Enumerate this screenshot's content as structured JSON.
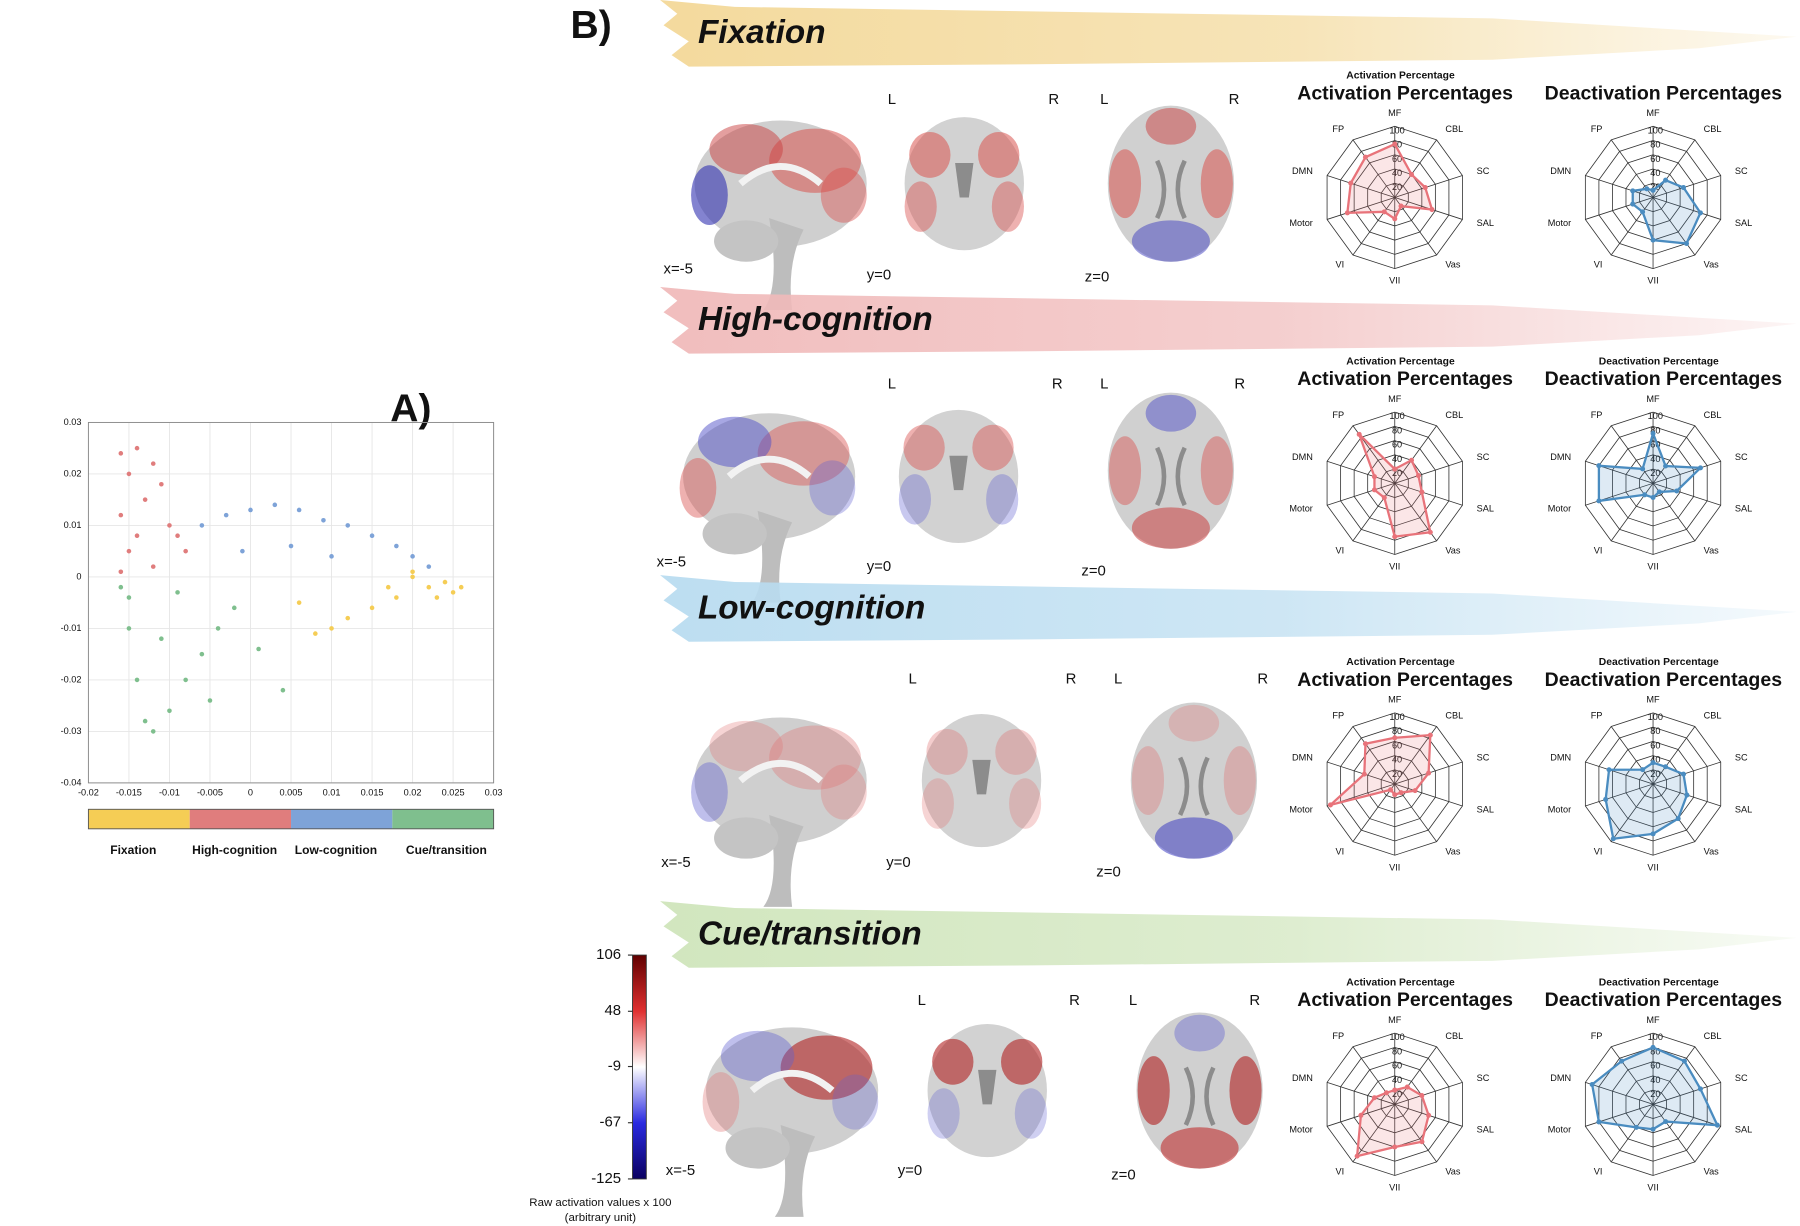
{
  "panels": {
    "a": "A)",
    "b": "B)"
  },
  "states": [
    {
      "title": "Fixation",
      "slices": [
        "x=-5",
        "y=0",
        "z=0"
      ],
      "sides": [
        "L",
        "R",
        "L",
        "R"
      ]
    },
    {
      "title": "High-cognition",
      "slices": [
        "x=-5",
        "y=0",
        "z=0"
      ],
      "sides": [
        "L",
        "R",
        "L",
        "R"
      ]
    },
    {
      "title": "Low-cognition",
      "slices": [
        "x=-5",
        "y=0",
        "z=0"
      ],
      "sides": [
        "L",
        "R",
        "L",
        "R"
      ]
    },
    {
      "title": "Cue/transition",
      "slices": [
        "x=-5",
        "y=0",
        "z=0"
      ],
      "sides": [
        "L",
        "R",
        "L",
        "R"
      ]
    }
  ],
  "chart_data": [
    {
      "type": "scatter",
      "xlim": [
        -0.02,
        0.03
      ],
      "ylim": [
        -0.04,
        0.03
      ],
      "xticks": [
        -0.02,
        -0.015,
        -0.01,
        -0.005,
        0,
        0.005,
        0.01,
        0.015,
        0.02,
        0.025,
        0.03
      ],
      "yticks": [
        -0.04,
        -0.03,
        -0.02,
        -0.01,
        0,
        0.01,
        0.02,
        0.03
      ],
      "grid": true,
      "series": [
        {
          "name": "Fixation",
          "color": "#f5cd55",
          "x": [
            0.02,
            0.022,
            0.024,
            0.026,
            0.025,
            0.018,
            0.015,
            0.012,
            0.01,
            0.008,
            0.006,
            0.02,
            0.017,
            0.023
          ],
          "y": [
            0,
            -0.002,
            -0.001,
            -0.002,
            -0.003,
            -0.004,
            -0.006,
            -0.008,
            -0.01,
            -0.011,
            -0.005,
            0.001,
            -0.002,
            -0.004
          ]
        },
        {
          "name": "High-cognition",
          "color": "#e07d7d",
          "x": [
            -0.016,
            -0.015,
            -0.014,
            -0.012,
            -0.011,
            -0.016,
            -0.013,
            -0.01,
            -0.009,
            -0.008,
            -0.015,
            -0.012,
            -0.016,
            -0.014
          ],
          "y": [
            0.024,
            0.02,
            0.025,
            0.022,
            0.018,
            0.012,
            0.015,
            0.01,
            0.008,
            0.005,
            0.005,
            0.002,
            0.001,
            0.008
          ]
        },
        {
          "name": "Low-cognition",
          "color": "#7ea3d8",
          "x": [
            -0.006,
            -0.003,
            0,
            0.003,
            0.006,
            0.009,
            0.012,
            0.015,
            0.018,
            0.02,
            0.022,
            0.005,
            0.01,
            -0.001
          ],
          "y": [
            0.01,
            0.012,
            0.013,
            0.014,
            0.013,
            0.011,
            0.01,
            0.008,
            0.006,
            0.004,
            0.002,
            0.006,
            0.004,
            0.005
          ]
        },
        {
          "name": "Cue/transition",
          "color": "#7fbf8e",
          "x": [
            -0.016,
            -0.015,
            -0.014,
            -0.013,
            -0.012,
            -0.01,
            -0.008,
            -0.006,
            -0.004,
            -0.002,
            0.001,
            0.004,
            -0.015,
            -0.011,
            -0.009,
            -0.005
          ],
          "y": [
            -0.002,
            -0.01,
            -0.02,
            -0.028,
            -0.03,
            -0.026,
            -0.02,
            -0.015,
            -0.01,
            -0.006,
            -0.014,
            -0.022,
            -0.004,
            -0.012,
            -0.003,
            -0.024
          ]
        }
      ]
    },
    {
      "type": "colorbar",
      "ylim": [
        -125,
        106
      ],
      "yticks": [
        -125,
        -67,
        -9,
        48,
        106
      ],
      "colors": [
        "#0a0060",
        "#2a2ae0",
        "#ffffff",
        "#e03030",
        "#600000"
      ],
      "label": [
        "Raw activation values x 100",
        "(arbitrary unit)"
      ]
    },
    {
      "type": "radar",
      "title": "Activation Percentages",
      "subtitle": "Activation Percentage",
      "categories": [
        "MF",
        "CBL",
        "SC",
        "SAL",
        "Vas",
        "VII",
        "VI",
        "Motor",
        "DMN",
        "FP"
      ],
      "values": [
        75,
        40,
        45,
        55,
        15,
        30,
        25,
        70,
        65,
        70
      ],
      "color": "#e8737a",
      "rlim": [
        0,
        100
      ],
      "rticks": [
        20,
        40,
        60,
        80,
        100
      ]
    },
    {
      "type": "radar",
      "title": "Deactivation Percentages",
      "categories": [
        "MF",
        "CBL",
        "SC",
        "SAL",
        "Vas",
        "VII",
        "VI",
        "Motor",
        "DMN",
        "FP"
      ],
      "values": [
        10,
        30,
        45,
        70,
        80,
        60,
        25,
        30,
        30,
        15
      ],
      "color": "#4a8cc0",
      "rlim": [
        0,
        100
      ],
      "rticks": [
        20,
        40,
        60,
        80,
        100
      ]
    },
    {
      "type": "radar",
      "title": "Activation Percentages",
      "subtitle": "Activation Percentage",
      "categories": [
        "MF",
        "CBL",
        "SC",
        "SAL",
        "Vas",
        "VII",
        "VI",
        "Motor",
        "DMN",
        "FP"
      ],
      "values": [
        20,
        40,
        35,
        40,
        85,
        75,
        25,
        30,
        30,
        85
      ],
      "color": "#e8737a",
      "rlim": [
        0,
        100
      ],
      "rticks": [
        20,
        40,
        60,
        80,
        100
      ]
    },
    {
      "type": "radar",
      "title": "Deactivation Percentages",
      "subtitle": "Deactivation Percentage",
      "categories": [
        "MF",
        "CBL",
        "SC",
        "SAL",
        "Vas",
        "VII",
        "VI",
        "Motor",
        "DMN",
        "FP"
      ],
      "values": [
        70,
        30,
        70,
        35,
        15,
        20,
        20,
        80,
        80,
        25
      ],
      "color": "#4a8cc0",
      "rlim": [
        0,
        100
      ],
      "rticks": [
        20,
        40,
        60,
        80,
        100
      ]
    },
    {
      "type": "radar",
      "title": "Activation Percentages",
      "subtitle": "Activation Percentage",
      "categories": [
        "MF",
        "CBL",
        "SC",
        "SAL",
        "Vas",
        "VII",
        "VI",
        "Motor",
        "DMN",
        "FP"
      ],
      "values": [
        65,
        85,
        50,
        30,
        15,
        15,
        10,
        95,
        45,
        70
      ],
      "color": "#e8737a",
      "rlim": [
        0,
        100
      ],
      "rticks": [
        20,
        40,
        60,
        80,
        100
      ]
    },
    {
      "type": "radar",
      "title": "Deactivation Percentages",
      "subtitle": "Deactivation Percentage",
      "categories": [
        "MF",
        "CBL",
        "SC",
        "SAL",
        "Vas",
        "VII",
        "VI",
        "Motor",
        "DMN",
        "FP"
      ],
      "values": [
        30,
        30,
        45,
        50,
        60,
        70,
        95,
        70,
        65,
        25
      ],
      "color": "#4a8cc0",
      "rlim": [
        0,
        100
      ],
      "rticks": [
        20,
        40,
        60,
        80,
        100
      ]
    },
    {
      "type": "radar",
      "title": "Activation Percentages",
      "subtitle": "Activation Percentage",
      "categories": [
        "MF",
        "CBL",
        "SC",
        "SAL",
        "Vas",
        "VII",
        "VI",
        "Motor",
        "DMN",
        "FP"
      ],
      "values": [
        20,
        30,
        40,
        50,
        65,
        60,
        90,
        50,
        30,
        20
      ],
      "color": "#e8737a",
      "rlim": [
        0,
        100
      ],
      "rticks": [
        20,
        40,
        60,
        80,
        100
      ]
    },
    {
      "type": "radar",
      "title": "Deactivation Percentages",
      "subtitle": "Deactivation Percentage",
      "categories": [
        "MF",
        "CBL",
        "SC",
        "SAL",
        "Vas",
        "VII",
        "VI",
        "Motor",
        "DMN",
        "FP"
      ],
      "values": [
        80,
        75,
        70,
        95,
        30,
        35,
        40,
        80,
        90,
        75
      ],
      "color": "#4a8cc0",
      "rlim": [
        0,
        100
      ],
      "rticks": [
        20,
        40,
        60,
        80,
        100
      ]
    }
  ]
}
